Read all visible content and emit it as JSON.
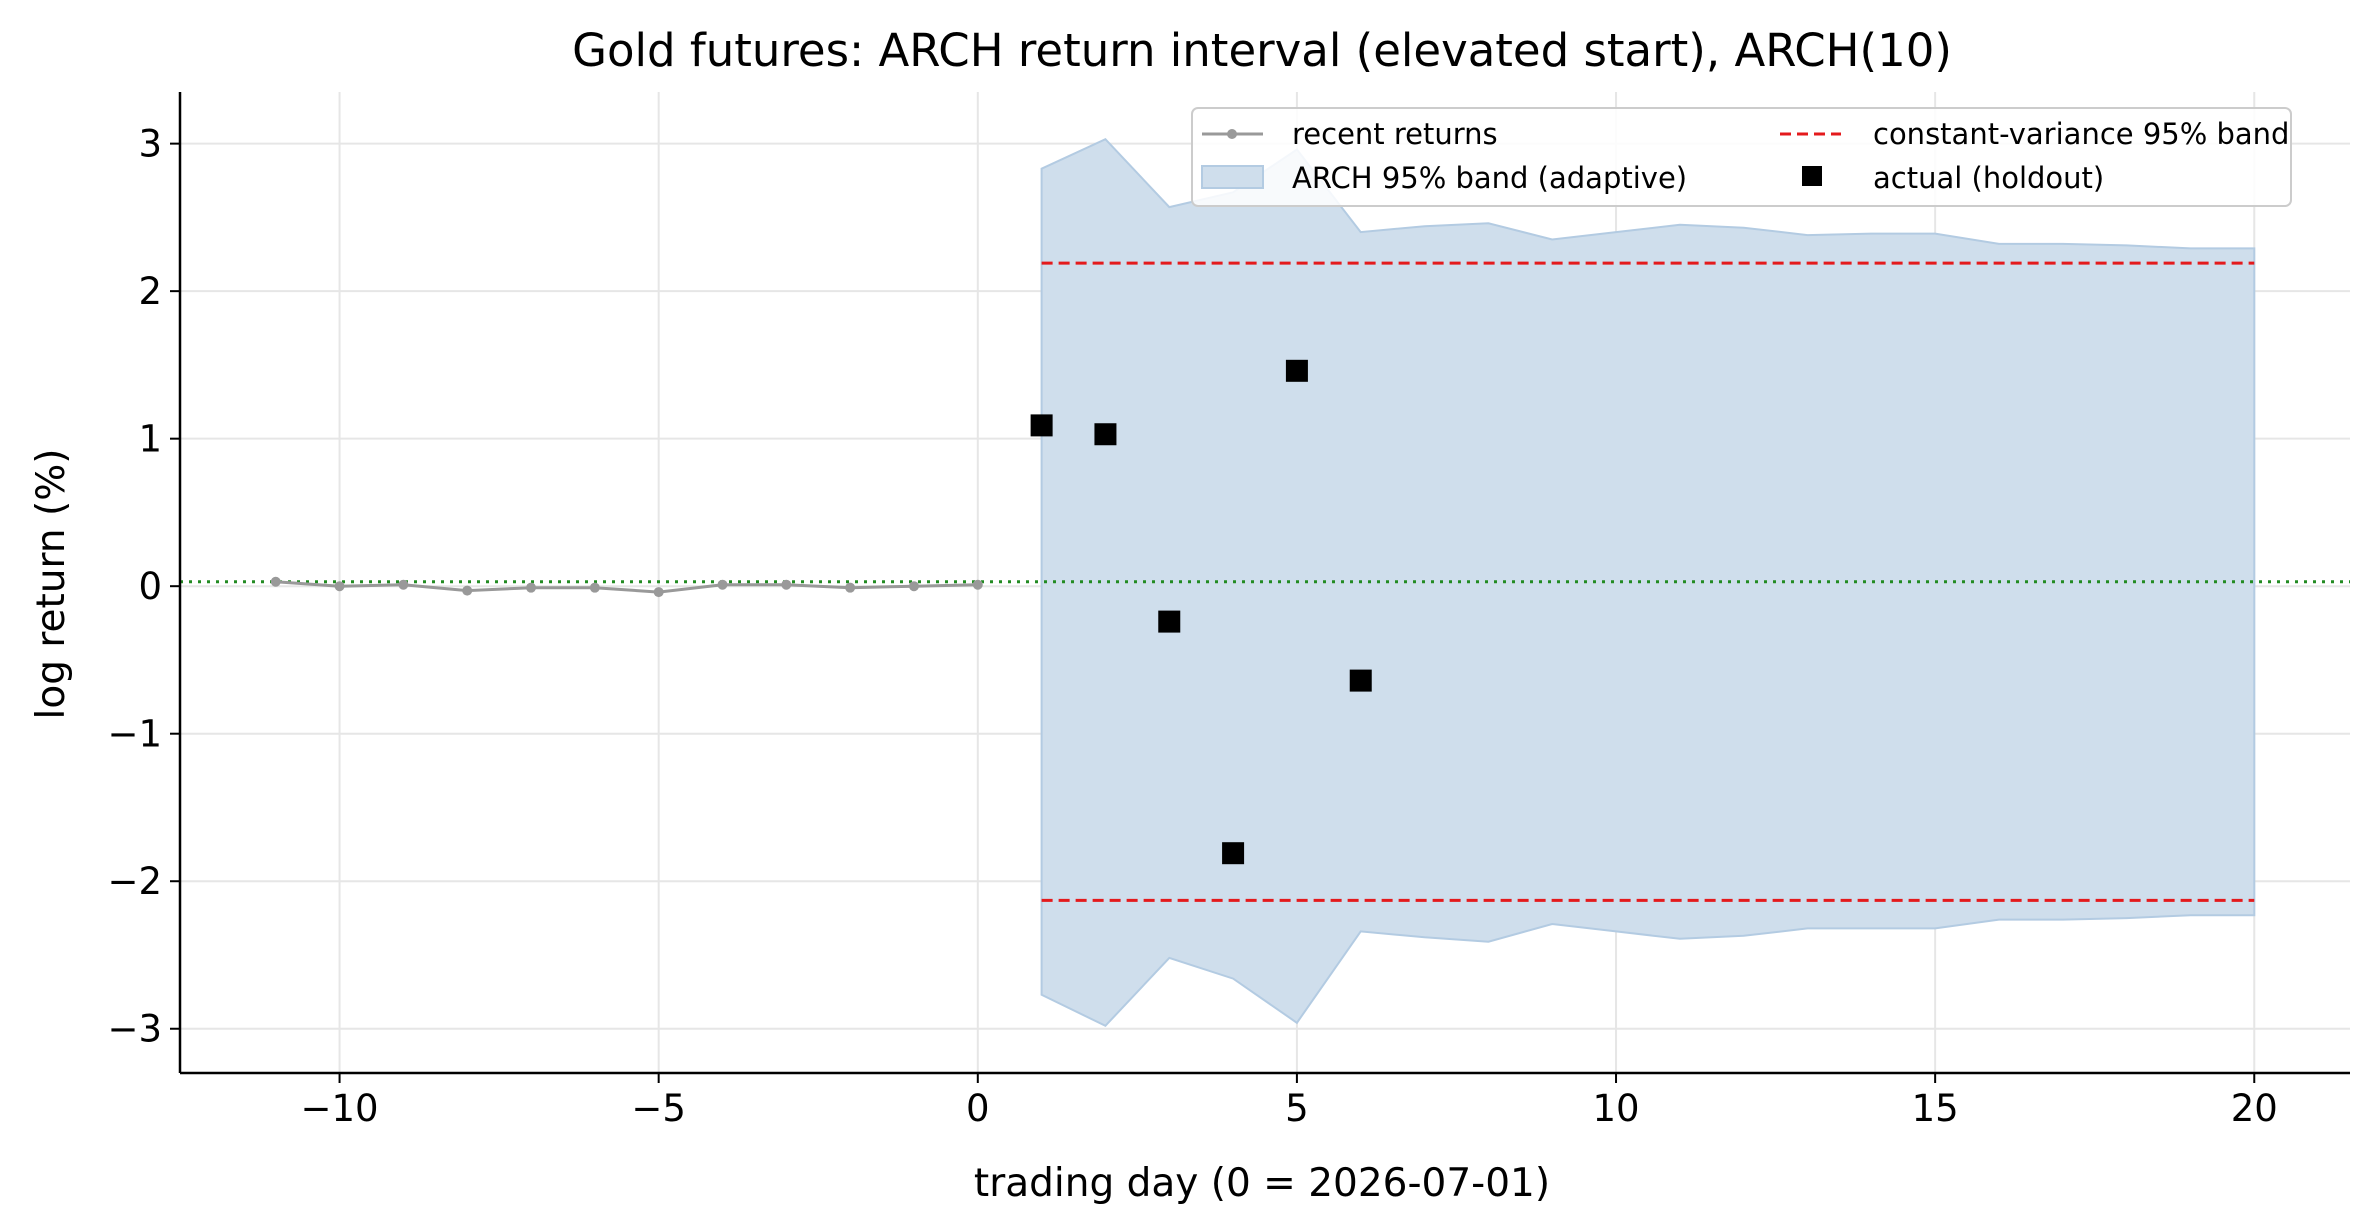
{
  "chart_data": {
    "type": "line",
    "title": "Gold futures: ARCH return interval (elevated start), ARCH(10)",
    "xlabel": "trading day (0 = 2026-07-01)",
    "ylabel": "log return (%)",
    "xlim": [
      -12.5,
      21.5
    ],
    "ylim": [
      -3.3,
      3.35
    ],
    "xticks": [
      -10,
      -5,
      0,
      5,
      10,
      15,
      20
    ],
    "yticks": [
      -3,
      -2,
      -1,
      0,
      1,
      2,
      3
    ],
    "xtick_labels": [
      "−10",
      "−5",
      "0",
      "5",
      "10",
      "15",
      "20"
    ],
    "ytick_labels": [
      "−3",
      "−2",
      "−1",
      "0",
      "1",
      "2",
      "3"
    ],
    "grid": true,
    "legend_position": "top-right",
    "colors": {
      "recent": "#999999",
      "band_fill": "#cfdeec",
      "band_edge": "#b3cbe2",
      "constant_band": "#e41a1c",
      "actual": "#000000",
      "mean_line": "#228b22",
      "grid": "#e6e6e6"
    },
    "series": [
      {
        "name": "recent returns",
        "kind": "line-marker",
        "x": [
          -11,
          -10,
          -9,
          -8,
          -7,
          -6,
          -5,
          -4,
          -3,
          -2,
          -1,
          0
        ],
        "y": [
          0.03,
          0.0,
          0.01,
          -0.03,
          -0.01,
          -0.01,
          -0.04,
          0.01,
          0.01,
          -0.01,
          0.0,
          0.01
        ]
      },
      {
        "name": "ARCH 95% band (adaptive)",
        "kind": "band",
        "x": [
          1,
          2,
          3,
          4,
          5,
          6,
          7,
          8,
          9,
          10,
          11,
          12,
          13,
          14,
          15,
          16,
          17,
          18,
          19,
          20
        ],
        "upper": [
          2.83,
          3.03,
          2.57,
          2.67,
          2.96,
          2.4,
          2.44,
          2.46,
          2.35,
          2.4,
          2.45,
          2.43,
          2.38,
          2.39,
          2.39,
          2.32,
          2.32,
          2.31,
          2.29,
          2.29
        ],
        "lower": [
          -2.77,
          -2.98,
          -2.52,
          -2.66,
          -2.96,
          -2.34,
          -2.38,
          -2.41,
          -2.29,
          -2.34,
          -2.39,
          -2.37,
          -2.32,
          -2.32,
          -2.32,
          -2.26,
          -2.26,
          -2.25,
          -2.23,
          -2.23
        ]
      },
      {
        "name": "constant-variance 95% band",
        "kind": "hline-pair",
        "x_range": [
          1,
          20
        ],
        "upper": 2.19,
        "lower": -2.13
      },
      {
        "name": "actual (holdout)",
        "kind": "scatter",
        "x": [
          1,
          2,
          3,
          4,
          5,
          6
        ],
        "y": [
          1.09,
          1.03,
          -0.24,
          -1.81,
          1.46,
          -0.64
        ]
      }
    ],
    "reference_line": {
      "y": 0.03
    }
  }
}
